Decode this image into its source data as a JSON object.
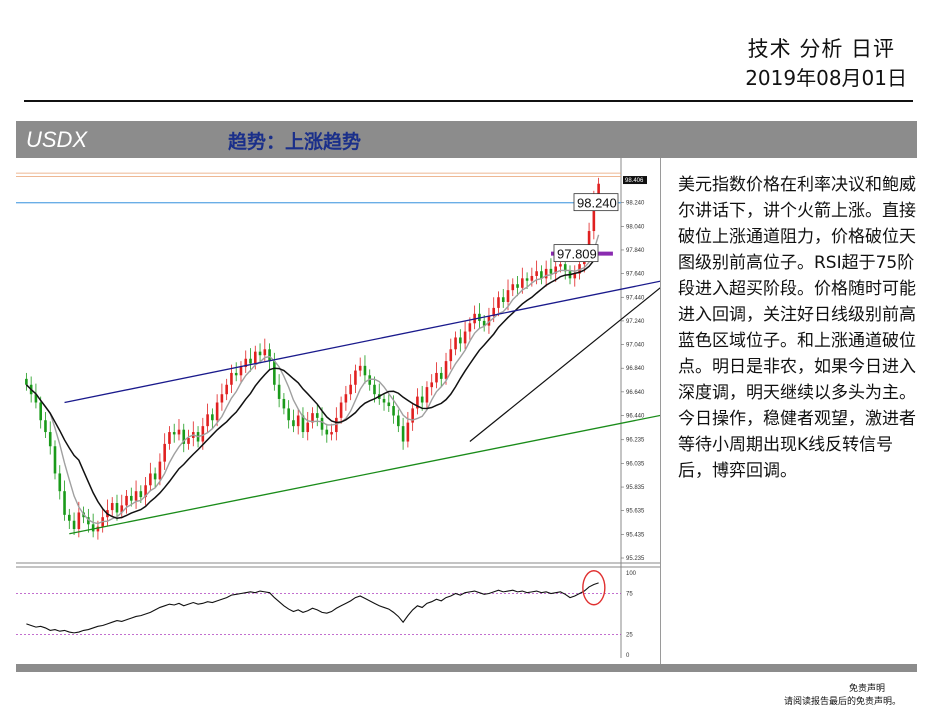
{
  "header": {
    "title": "技术 分析 日评",
    "date": "2019年08月01日"
  },
  "section": {
    "symbol": "USDX",
    "trend": "趋势：上涨趋势"
  },
  "commentary": "美元指数价格在利率决议和鲍威尔讲话下，讲个火箭上涨。直接破位上涨通道阻力，价格破位天图级别前高位子。RSI超于75阶段进入超买阶段。价格随时可能进入回调，关注好日线级别前高蓝色区域位子。和上涨通道破位点。明日是非农，如果今日进入深度调，明天继续以多头为主。今日操作，稳健者观望，激进者等待小周期出现K线反转信号后，博弈回调。",
  "disclaimer": {
    "title": "免责声明",
    "text": "请阅读报告最后的免责声明。"
  },
  "colors": {
    "up": "#e02020",
    "down": "#1a9a1a",
    "resistance": "#1a1a8c",
    "support": "#1a8c1a",
    "level_light_blue": "#6aaee6",
    "level_purple": "#8a2bb0",
    "ma_short": "#a0a0a0",
    "ma_long": "#111111",
    "marker_circle": "#e03030"
  },
  "chart_data": {
    "type": "candlestick",
    "y_ticks": [
      "98.406",
      "98.240",
      "98.040",
      "97.840",
      "97.640",
      "97.440",
      "97.240",
      "97.040",
      "96.840",
      "96.640",
      "96.440",
      "96.235",
      "96.035",
      "95.835",
      "95.635",
      "95.435",
      "95.235"
    ],
    "ylim": [
      95.235,
      98.55
    ],
    "current_price": "98.406",
    "level_labels": [
      "98.240",
      "97.809"
    ],
    "levels": [
      {
        "name": "98.240",
        "value": 98.24,
        "color": "#6aaee6"
      },
      {
        "name": "97.809",
        "value": 97.809,
        "color": "#8a2bb0"
      }
    ],
    "horizontal_lines": [
      98.49,
      98.46
    ],
    "channel": {
      "resistance": [
        [
          8,
          96.55
        ],
        [
          170,
          97.88
        ]
      ],
      "support": [
        [
          9,
          95.44
        ],
        [
          170,
          96.74
        ]
      ]
    },
    "ohlc_close": [
      96.7,
      96.62,
      96.55,
      96.4,
      96.3,
      96.18,
      95.95,
      95.8,
      95.6,
      95.55,
      95.48,
      95.62,
      95.58,
      95.52,
      95.46,
      95.5,
      95.58,
      95.64,
      95.7,
      95.62,
      95.68,
      95.76,
      95.72,
      95.8,
      95.75,
      95.85,
      95.95,
      95.9,
      96.05,
      96.2,
      96.3,
      96.28,
      96.32,
      96.2,
      96.25,
      96.3,
      96.22,
      96.35,
      96.45,
      96.4,
      96.55,
      96.62,
      96.7,
      96.8,
      96.78,
      96.85,
      96.92,
      96.88,
      96.98,
      96.95,
      97.0,
      96.9,
      96.7,
      96.58,
      96.5,
      96.4,
      96.35,
      96.44,
      96.3,
      96.38,
      96.46,
      96.42,
      96.32,
      96.28,
      96.3,
      96.42,
      96.55,
      96.62,
      96.7,
      96.82,
      96.86,
      96.78,
      96.7,
      96.62,
      96.58,
      96.55,
      96.52,
      96.44,
      96.35,
      96.22,
      96.38,
      96.5,
      96.6,
      96.55,
      96.68,
      96.72,
      96.8,
      96.75,
      96.9,
      97.0,
      97.1,
      97.05,
      97.15,
      97.22,
      97.3,
      97.24,
      97.2,
      97.28,
      97.35,
      97.44,
      97.4,
      97.5,
      97.55,
      97.52,
      97.6,
      97.58,
      97.62,
      97.66,
      97.6,
      97.68,
      97.64,
      97.7,
      97.72,
      97.66,
      97.6,
      97.64,
      97.72,
      97.8,
      98.0,
      98.25,
      98.4
    ],
    "rsi": {
      "ylim": [
        0,
        100
      ],
      "y_ticks": [
        "100",
        "75",
        "25",
        "0"
      ],
      "levels": [
        75,
        25
      ],
      "values": [
        38,
        36,
        34,
        35,
        33,
        30,
        31,
        29,
        30,
        28,
        27,
        28,
        30,
        31,
        33,
        35,
        36,
        38,
        40,
        42,
        41,
        43,
        45,
        47,
        48,
        50,
        52,
        55,
        58,
        60,
        62,
        61,
        63,
        60,
        62,
        64,
        62,
        63,
        65,
        64,
        66,
        68,
        70,
        73,
        74,
        75,
        76,
        77,
        76,
        78,
        77,
        76,
        70,
        65,
        60,
        56,
        53,
        55,
        52,
        54,
        57,
        55,
        52,
        51,
        53,
        57,
        60,
        63,
        66,
        70,
        72,
        69,
        66,
        63,
        60,
        58,
        56,
        52,
        47,
        40,
        48,
        55,
        60,
        58,
        63,
        65,
        68,
        66,
        70,
        72,
        75,
        73,
        76,
        77,
        78,
        76,
        74,
        75,
        77,
        79,
        77,
        78,
        79,
        77,
        78,
        76,
        77,
        78,
        76,
        77,
        75,
        76,
        77,
        74,
        70,
        72,
        75,
        78,
        83,
        86,
        88
      ]
    }
  }
}
